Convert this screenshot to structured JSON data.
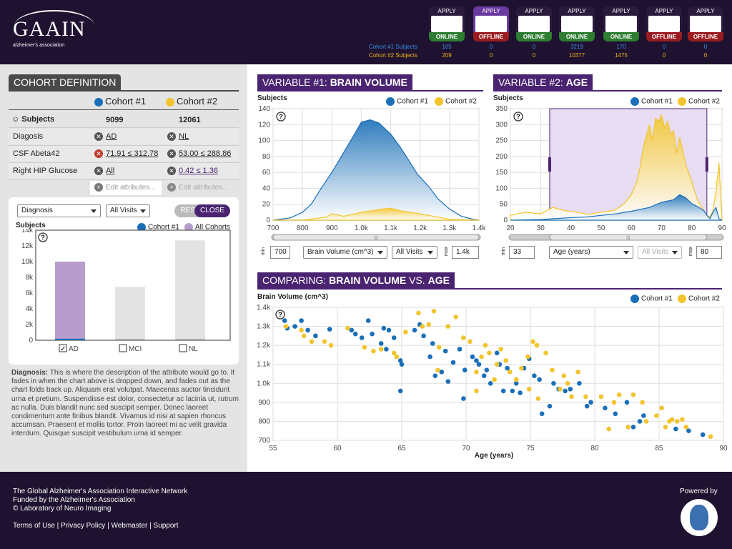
{
  "header": {
    "logo": "GAAIN",
    "logo_sub": "alzheimer's association",
    "apply": "APPLY",
    "databases": [
      {
        "status": "ONLINE",
        "c1": "105",
        "c2": "209"
      },
      {
        "status": "OFFLINE",
        "c1": "0",
        "c2": "0"
      },
      {
        "status": "ONLINE",
        "c1": "0",
        "c2": "0"
      },
      {
        "status": "ONLINE",
        "c1": "3219",
        "c2": "10377"
      },
      {
        "status": "ONLINE",
        "c1": "170",
        "c2": "1475"
      },
      {
        "status": "OFFLINE",
        "c1": "0",
        "c2": "0"
      },
      {
        "status": "OFFLINE",
        "c1": "0",
        "c2": "0"
      }
    ],
    "cohort1_label": "Cohort #1 Subjects",
    "cohort2_label": "Cohort #2 Subjects"
  },
  "cohort": {
    "title_a": "COHORT",
    "title_b": " DEFINITION",
    "col1": "Cohort #1",
    "col2": "Cohort #2",
    "subjects_label": "Subjects",
    "subjects1": "9099",
    "subjects2": "12061",
    "rows": [
      {
        "label": "Diagosis",
        "v1": "AD",
        "v2": "NL"
      },
      {
        "label": "CSF Abeta42",
        "v1": "71.91 ≤ 312.78",
        "v2": "53.00 ≤ 288.86"
      },
      {
        "label": "Right HIP Glucose",
        "v1": "All",
        "v2": "0.42 ≤ 1.36"
      }
    ],
    "edit": "Edit attributes..."
  },
  "detail": {
    "attr": "Diagnosis",
    "visits": "All Visits",
    "reset": "RESET",
    "close": "CLOSE",
    "ylabel": "Subjects",
    "legend1": "Cohort #1",
    "legend2": "All Cohorts",
    "cats": [
      {
        "label": "AD",
        "checked": true
      },
      {
        "label": "MCI",
        "checked": false
      },
      {
        "label": "NL",
        "checked": false
      }
    ],
    "desc_label": "Diagnosis:",
    "desc": " This is where the description of the attribute would go to. It fades in when the chart above is dropped down, and fades out as the chart folds back up. Aliquam erat volutpat. Maecenas auctor tincidunt urna et pretium. Suspendisse est dolor, consectetur ac lacinia ut, rutrum ac nulla. Duis blandit nunc sed suscipit semper. Donec laoreet condimentum ante finibus blandit. Vivamus id nisi at sapien rhoncus accumsan. Praesent et mollis tortor. Proin laoreet mi ac velit gravida interdum. Quisque suscipit vestibulum urna id semper."
  },
  "var1": {
    "tab_a": "VARIABLE #1: ",
    "tab_b": "BRAIN VOLUME",
    "ylabel": "Subjects",
    "legend1": "Cohort #1",
    "legend2": "Cohort #2",
    "min_label": "min",
    "max_label": "max",
    "min": "700",
    "max": "1.4k",
    "select": "Brain Volume (cm^3)",
    "visits": "All Visits"
  },
  "var2": {
    "tab_a": "VARIABLE #2: ",
    "tab_b": "AGE",
    "ylabel": "Subjects",
    "legend1": "Cohort #1",
    "legend2": "Cohort #2",
    "min_label": "min",
    "max_label": "max",
    "min": "33",
    "max": "80",
    "select": "Age (years)",
    "visits": "All Visits"
  },
  "compare": {
    "tab_a": "COMPARING: ",
    "tab_b": "BRAIN VOLUME",
    "tab_c": " VS. ",
    "tab_d": "AGE",
    "ylabel": "Brain Volume (cm^3)",
    "xlabel": "Age (years)",
    "legend1": "Cohort #1",
    "legend2": "Cohort #2"
  },
  "colors": {
    "cohort1": "#1a6fb8",
    "cohort2": "#f2c52e",
    "purple": "#4a2470",
    "all": "#b89ccc"
  },
  "footer": {
    "l1": "The Global Alzheimer's Association Interactive Network",
    "l2": "Funded by the Alzheimer's Association",
    "l3": "© Laboratory of Neuro Imaging",
    "links": "Terms of Use | Privacy Policy | Webmaster | Support",
    "powered": "Powered by"
  },
  "chart_data": [
    {
      "type": "bar",
      "ylabel": "Subjects",
      "categories": [
        "AD",
        "MCI",
        "NL"
      ],
      "ylim": [
        0,
        14000
      ],
      "yticks": [
        "0",
        "2k",
        "4k",
        "6k",
        "8k",
        "10k",
        "12k",
        "14k"
      ],
      "series": [
        {
          "name": "All Cohorts",
          "values": [
            10000,
            6800,
            12700
          ]
        },
        {
          "name": "Cohort #1",
          "values": [
            200,
            0,
            0
          ]
        }
      ]
    },
    {
      "type": "area",
      "ylabel": "Subjects",
      "xlim": [
        700,
        1400
      ],
      "ylim": [
        0,
        140
      ],
      "xticks": [
        "700",
        "800",
        "900",
        "1.0k",
        "1.1k",
        "1.2k",
        "1.3k",
        "1.4k"
      ],
      "yticks": [
        "0",
        "20",
        "40",
        "60",
        "80",
        "100",
        "120",
        "140"
      ],
      "series": [
        {
          "name": "Cohort #1",
          "x": [
            700,
            720,
            760,
            800,
            830,
            860,
            900,
            940,
            980,
            1000,
            1030,
            1060,
            1100,
            1130,
            1160,
            1190,
            1230,
            1260,
            1300,
            1340,
            1380,
            1400
          ],
          "values": [
            0,
            1,
            3,
            10,
            20,
            38,
            60,
            85,
            110,
            123,
            126,
            122,
            108,
            93,
            76,
            58,
            42,
            27,
            14,
            5,
            1,
            0
          ]
        },
        {
          "name": "Cohort #2",
          "x": [
            700,
            800,
            880,
            900,
            940,
            980,
            1000,
            1040,
            1070,
            1100,
            1130,
            1200,
            1260,
            1300,
            1400
          ],
          "values": [
            0,
            0,
            4,
            8,
            5,
            8,
            10,
            12,
            14,
            15,
            12,
            8,
            4,
            1,
            0
          ]
        }
      ]
    },
    {
      "type": "area",
      "ylabel": "Subjects",
      "xlim": [
        20,
        90
      ],
      "ylim": [
        0,
        350
      ],
      "xticks": [
        "20",
        "30",
        "40",
        "50",
        "60",
        "70",
        "80",
        "90"
      ],
      "yticks": [
        "0",
        "50",
        "100",
        "150",
        "200",
        "250",
        "300",
        "350"
      ],
      "series": [
        {
          "name": "Cohort #1",
          "x": [
            20,
            30,
            35,
            40,
            45,
            50,
            55,
            58,
            60,
            62,
            64,
            66,
            68,
            70,
            72,
            74,
            76,
            78,
            80,
            82,
            84,
            85,
            86,
            87,
            88,
            89,
            90
          ],
          "values": [
            0,
            2,
            5,
            8,
            10,
            15,
            20,
            25,
            28,
            32,
            36,
            40,
            48,
            56,
            60,
            64,
            80,
            70,
            52,
            42,
            30,
            15,
            5,
            25,
            40,
            5,
            0
          ]
        },
        {
          "name": "Cohort #2",
          "x": [
            20,
            25,
            30,
            34,
            38,
            42,
            46,
            50,
            54,
            56,
            58,
            60,
            62,
            63,
            64,
            66,
            67,
            68,
            69,
            70,
            71,
            72,
            73,
            74,
            75,
            76,
            78,
            80,
            82,
            84,
            85,
            86,
            87,
            88,
            89,
            90
          ],
          "values": [
            15,
            25,
            20,
            40,
            30,
            25,
            18,
            25,
            30,
            40,
            55,
            80,
            125,
            170,
            230,
            300,
            250,
            320,
            310,
            330,
            290,
            310,
            270,
            280,
            210,
            260,
            175,
            120,
            60,
            30,
            15,
            10,
            30,
            90,
            180,
            0
          ]
        }
      ]
    },
    {
      "type": "scatter",
      "xlabel": "Age (years)",
      "ylabel": "Brain Volume (cm^3)",
      "xlim": [
        55,
        90
      ],
      "ylim": [
        700,
        1400
      ],
      "xticks": [
        "55",
        "60",
        "65",
        "70",
        "75",
        "80",
        "85",
        "90"
      ],
      "yticks": [
        "700",
        "800",
        "900",
        "1.0k",
        "1.1k",
        "1.2k",
        "1.3k",
        "1.4k"
      ],
      "series": [
        {
          "name": "Cohort #1",
          "points": [
            [
              55.9,
              1330
            ],
            [
              56.1,
              1290
            ],
            [
              56.7,
              1300
            ],
            [
              57.2,
              1330
            ],
            [
              57.7,
              1280
            ],
            [
              58.3,
              1250
            ],
            [
              59.4,
              1285
            ],
            [
              61.1,
              1280
            ],
            [
              61.4,
              1260
            ],
            [
              61.9,
              1240
            ],
            [
              62.4,
              1330
            ],
            [
              62.7,
              1260
            ],
            [
              63.6,
              1290
            ],
            [
              63.8,
              1180
            ],
            [
              63.4,
              1210
            ],
            [
              64,
              1280
            ],
            [
              64.4,
              1240
            ],
            [
              64.9,
              1120
            ],
            [
              65,
              1100
            ],
            [
              64.9,
              960
            ],
            [
              66,
              1280
            ],
            [
              66.4,
              1310
            ],
            [
              66.7,
              1250
            ],
            [
              67.2,
              1140
            ],
            [
              67.4,
              1210
            ],
            [
              67.6,
              1040
            ],
            [
              68.1,
              1060
            ],
            [
              68.6,
              1010
            ],
            [
              69,
              1110
            ],
            [
              68.4,
              1170
            ],
            [
              69.5,
              1180
            ],
            [
              69.9,
              1070
            ],
            [
              69.8,
              920
            ],
            [
              70.5,
              1140
            ],
            [
              70.8,
              1120
            ],
            [
              71,
              1100
            ],
            [
              71.4,
              1040
            ],
            [
              71.6,
              1070
            ],
            [
              71.9,
              1000
            ],
            [
              72.4,
              1160
            ],
            [
              72.6,
              1100
            ],
            [
              72.9,
              960
            ],
            [
              73.2,
              1080
            ],
            [
              73.6,
              960
            ],
            [
              73.9,
              1000
            ],
            [
              74.2,
              950
            ],
            [
              74.5,
              1080
            ],
            [
              74.9,
              1130
            ],
            [
              75.3,
              1040
            ],
            [
              75.7,
              1020
            ],
            [
              75.9,
              840
            ],
            [
              76.5,
              880
            ],
            [
              76.8,
              1000
            ],
            [
              77.2,
              970
            ],
            [
              77.7,
              960
            ],
            [
              78.1,
              970
            ],
            [
              78.8,
              1000
            ],
            [
              79.4,
              880
            ],
            [
              79.7,
              900
            ],
            [
              80.8,
              870
            ],
            [
              81.6,
              840
            ],
            [
              82.5,
              900
            ],
            [
              83,
              770
            ],
            [
              83.5,
              800
            ],
            [
              83.8,
              830
            ],
            [
              86.3,
              760
            ],
            [
              87.3,
              750
            ],
            [
              88.4,
              730
            ]
          ]
        },
        {
          "name": "Cohort #2",
          "points": [
            [
              56,
              1300
            ],
            [
              57.2,
              1280
            ],
            [
              57.4,
              1250
            ],
            [
              58,
              1220
            ],
            [
              59,
              1220
            ],
            [
              59.5,
              1200
            ],
            [
              60.8,
              1290
            ],
            [
              62.1,
              1190
            ],
            [
              62.8,
              1170
            ],
            [
              63.4,
              1180
            ],
            [
              64.4,
              1160
            ],
            [
              64.6,
              1140
            ],
            [
              65.3,
              1270
            ],
            [
              66.3,
              1370
            ],
            [
              66.6,
              1300
            ],
            [
              67.1,
              1310
            ],
            [
              67.5,
              1380
            ],
            [
              67.8,
              1070
            ],
            [
              67.9,
              1190
            ],
            [
              68.6,
              1300
            ],
            [
              69.2,
              1350
            ],
            [
              69.8,
              1240
            ],
            [
              70.3,
              1220
            ],
            [
              70.8,
              1060
            ],
            [
              70.8,
              960
            ],
            [
              71.2,
              1140
            ],
            [
              71.5,
              1200
            ],
            [
              71.8,
              1160
            ],
            [
              72.2,
              1020
            ],
            [
              72.4,
              1100
            ],
            [
              72.7,
              1180
            ],
            [
              73.1,
              1120
            ],
            [
              73.4,
              1060
            ],
            [
              73.9,
              1020
            ],
            [
              74.3,
              1080
            ],
            [
              74.8,
              1140
            ],
            [
              74.9,
              970
            ],
            [
              75.2,
              1220
            ],
            [
              75.5,
              1200
            ],
            [
              75.6,
              920
            ],
            [
              76.2,
              1160
            ],
            [
              76.7,
              1070
            ],
            [
              77.3,
              970
            ],
            [
              77.6,
              1040
            ],
            [
              77.9,
              1000
            ],
            [
              78.2,
              930
            ],
            [
              78.7,
              1060
            ],
            [
              79.3,
              930
            ],
            [
              80.5,
              930
            ],
            [
              81.1,
              760
            ],
            [
              81.5,
              900
            ],
            [
              81.9,
              940
            ],
            [
              82.6,
              770
            ],
            [
              83,
              940
            ],
            [
              83.7,
              900
            ],
            [
              84,
              800
            ],
            [
              84.8,
              830
            ],
            [
              85.2,
              870
            ],
            [
              85.5,
              770
            ],
            [
              85.8,
              800
            ],
            [
              86,
              810
            ],
            [
              86.4,
              800
            ],
            [
              86.8,
              810
            ],
            [
              87.1,
              770
            ],
            [
              89,
              720
            ]
          ]
        }
      ]
    }
  ]
}
